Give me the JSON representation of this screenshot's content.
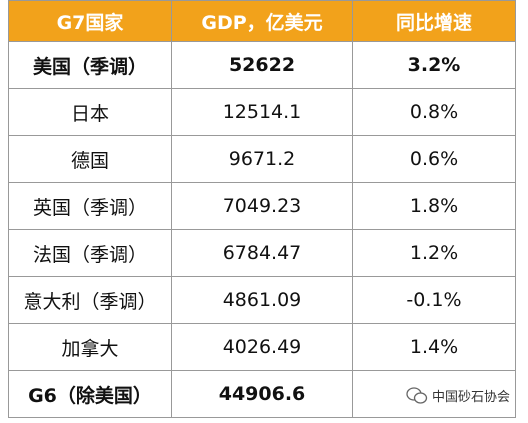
{
  "table": {
    "header": [
      "G7国家",
      "GDP，亿美元",
      "同比增速"
    ],
    "rows": [
      [
        "美国（季调）",
        "52622",
        "3.2%"
      ],
      [
        "日本",
        "12514.1",
        "0.8%"
      ],
      [
        "德国",
        "9671.2",
        "0.6%"
      ],
      [
        "英国（季调）",
        "7049.23",
        "1.8%"
      ],
      [
        "法国（季调）",
        "6784.47",
        "1.2%"
      ],
      [
        "意大利（季调）",
        "4861.09",
        "-0.1%"
      ],
      [
        "加拿大",
        "4026.49",
        "1.4%"
      ],
      [
        "G6（除美国）",
        "44906.6"
      ]
    ]
  },
  "watermark": "中国砂石协会"
}
